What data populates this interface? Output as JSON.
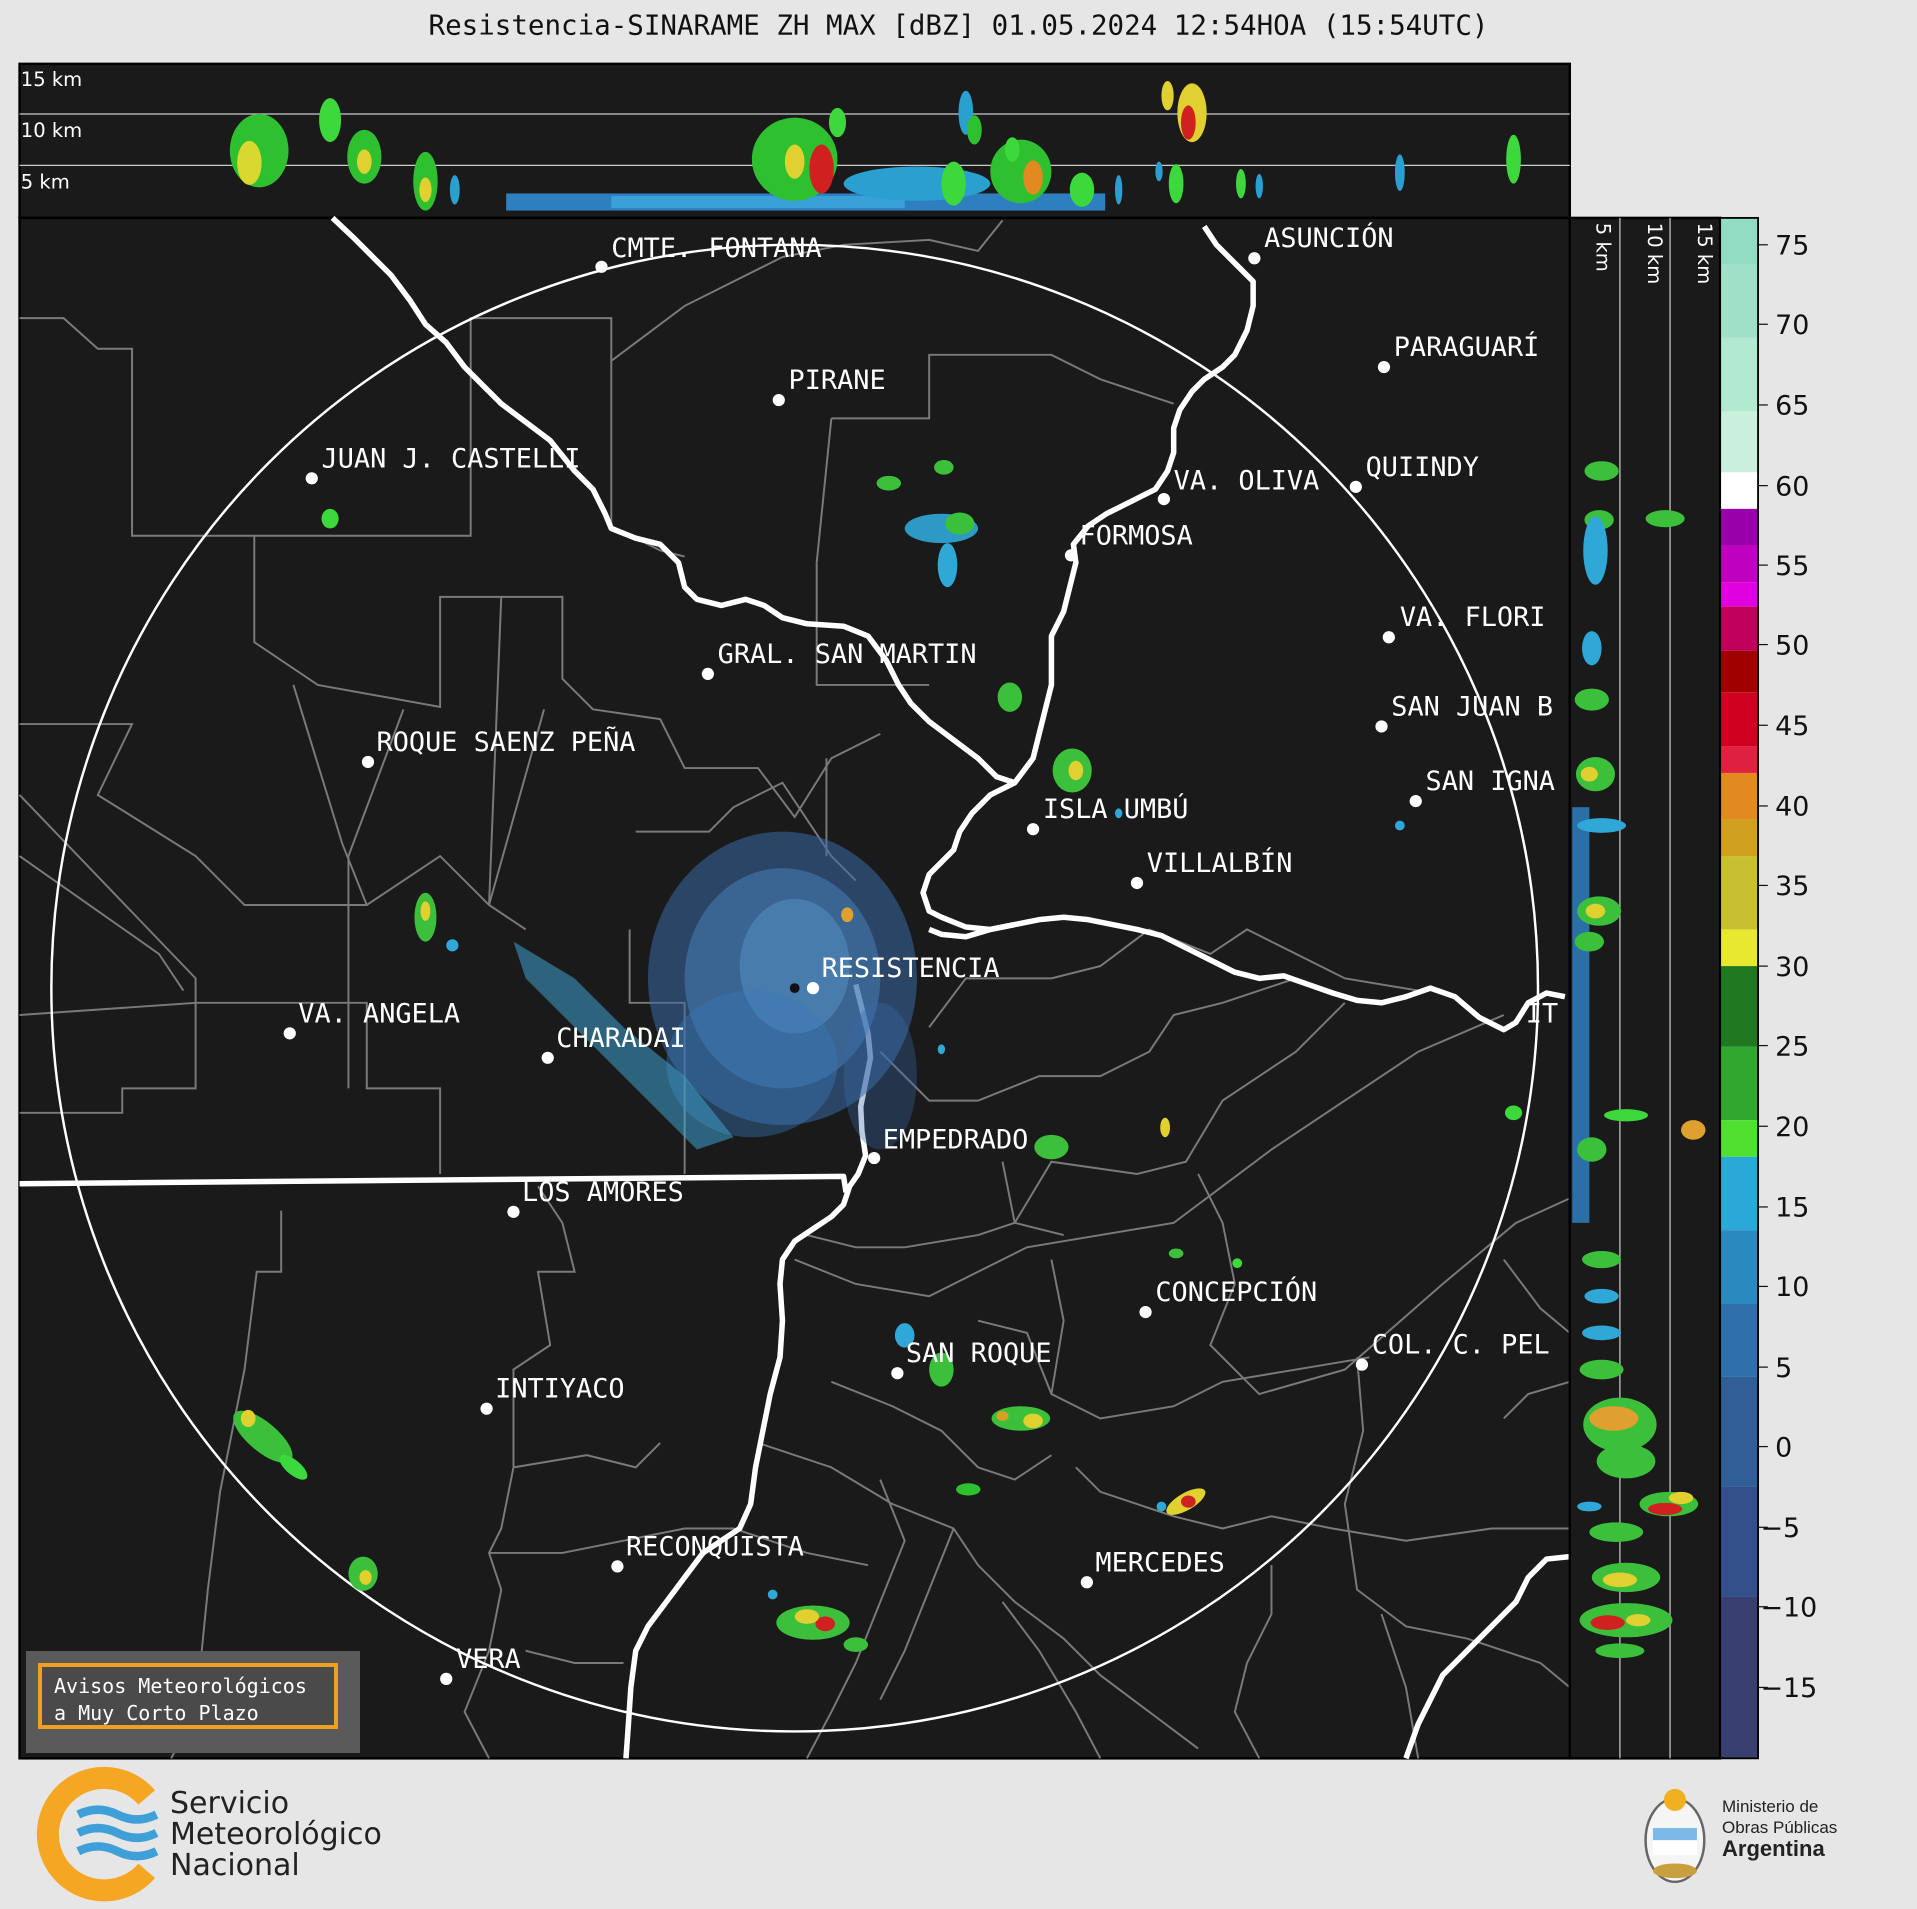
{
  "title": "Resistencia-SINARAME ZH MAX [dBZ] 01.05.2024 12:54HOA (15:54UTC)",
  "top_profile": {
    "height_labels": [
      "15 km",
      "10 km",
      "5 km"
    ]
  },
  "side_profile": {
    "height_labels": [
      "5 km",
      "10 km",
      "15 km"
    ]
  },
  "colorbar": {
    "ticks": [
      "75",
      "70",
      "65",
      "60",
      "55",
      "50",
      "45",
      "40",
      "35",
      "30",
      "25",
      "20",
      "15",
      "10",
      "5",
      "0",
      "−5",
      "−10",
      "−15"
    ]
  },
  "cities": [
    {
      "name": "CMTE. FONTANA"
    },
    {
      "name": "ASUNCIÓN"
    },
    {
      "name": "PARAGUARÍ"
    },
    {
      "name": "PIRANE"
    },
    {
      "name": "JUAN J. CASTELLI"
    },
    {
      "name": "VA. OLIVA"
    },
    {
      "name": "QUIINDY"
    },
    {
      "name": "FORMOSA"
    },
    {
      "name": "VA. FLORI"
    },
    {
      "name": "GRAL. SAN MARTIN"
    },
    {
      "name": "SAN JUAN B"
    },
    {
      "name": "ROQUE SAENZ PEÑA"
    },
    {
      "name": "SAN IGNA"
    },
    {
      "name": "ISLA UMBÚ"
    },
    {
      "name": "VILLALBÍN"
    },
    {
      "name": "RESISTENCIA"
    },
    {
      "name": "VA. ANGELA"
    },
    {
      "name": "CHARADAI"
    },
    {
      "name": "IT"
    },
    {
      "name": "EMPEDRADO"
    },
    {
      "name": "LOS AMORES"
    },
    {
      "name": "CONCEPCIÓN"
    },
    {
      "name": "SAN ROQUE"
    },
    {
      "name": "COL. C. PEL"
    },
    {
      "name": "INTIYACO"
    },
    {
      "name": "RECONQUISTA"
    },
    {
      "name": "MERCEDES"
    },
    {
      "name": "VERA"
    }
  ],
  "warning_box": {
    "line1": "Avisos Meteorológicos",
    "line2": "a Muy Corto Plazo"
  },
  "smn_logo": {
    "line1": "Servicio",
    "line2": "Meteorológico",
    "line3": "Nacional"
  },
  "ministry": {
    "line1": "Ministerio de",
    "line2": "Obras Públicas",
    "line3": "Argentina"
  },
  "colors": {
    "background": "#1a1a1a",
    "page": "#e6e6e6",
    "warning_border": "#f0a020"
  }
}
